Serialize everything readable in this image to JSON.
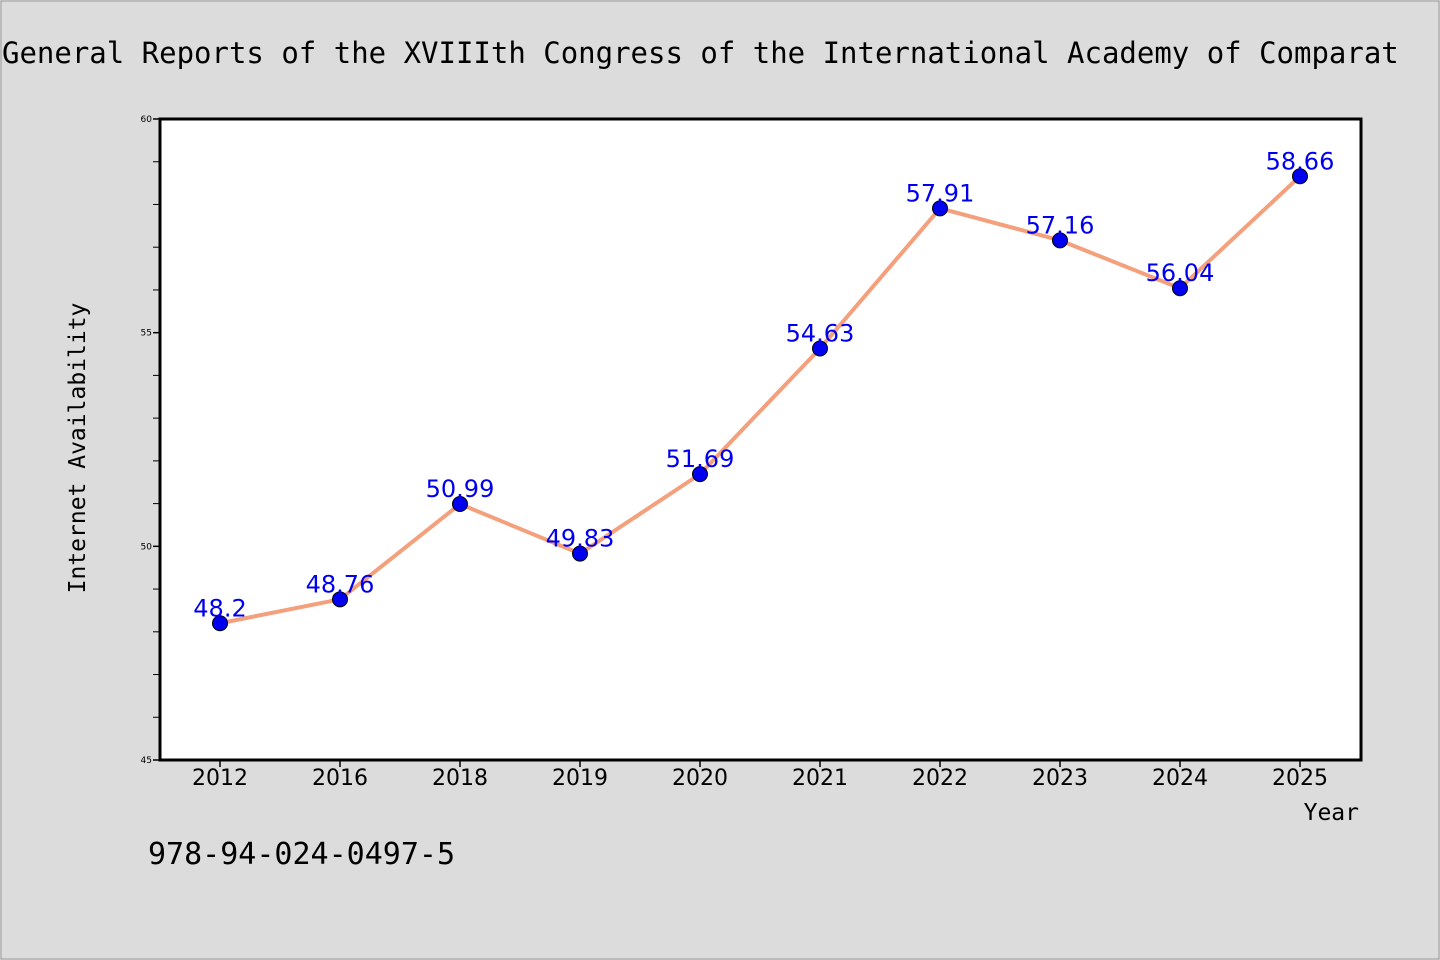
{
  "chart_data": {
    "type": "line",
    "title": "General Reports of the XVIIIth Congress of the International Academy of Comparat",
    "xlabel": "Year",
    "ylabel": "Internet Availability",
    "categories": [
      "2012",
      "2016",
      "2018",
      "2019",
      "2020",
      "2021",
      "2022",
      "2023",
      "2024",
      "2025"
    ],
    "series": [
      {
        "values": [
          48.2,
          48.76,
          50.99,
          49.83,
          51.69,
          54.63,
          57.91,
          57.16,
          56.04,
          58.66
        ],
        "data_labels": [
          "48.2",
          "48.76",
          "50.99",
          "49.83",
          "51.69",
          "54.63",
          "57.91",
          "57.16",
          "56.04",
          "58.66"
        ]
      }
    ],
    "ylim": [
      45,
      60
    ],
    "yticks": [
      "45",
      "50",
      "55",
      "60"
    ],
    "grid": false,
    "legend": "none",
    "colors": {
      "line": "#f4a07c",
      "marker": "#0000ee",
      "label": "#0000ee",
      "background": "#dcdcdc",
      "plot_background": "#ffffff"
    }
  },
  "footer": {
    "isbn": "978-94-024-0497-5"
  }
}
